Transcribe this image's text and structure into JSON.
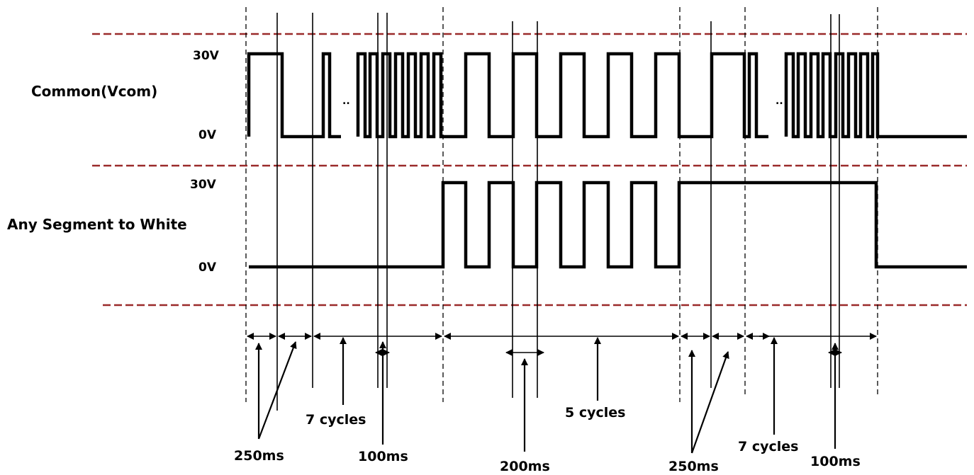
{
  "signals": {
    "common": {
      "label": "Common(Vcom)",
      "high": "30V",
      "low": "0V",
      "ellipsis": "..",
      "ellipsis2": ".."
    },
    "segment": {
      "label": "Any Segment to White",
      "high": "30V",
      "low": "0V"
    }
  },
  "annotations": {
    "a_250ms_1": "250ms",
    "a_7cycles_1": "7 cycles",
    "a_100ms_1": "100ms",
    "a_200ms": "200ms",
    "a_5cycles": "5 cycles",
    "a_250ms_2": "250ms",
    "a_7cycles_2": "7 cycles",
    "a_100ms_2": "100ms"
  },
  "colors": {
    "separator": "#9a2a2a",
    "waveform": "#000000",
    "guide": "#000000"
  }
}
